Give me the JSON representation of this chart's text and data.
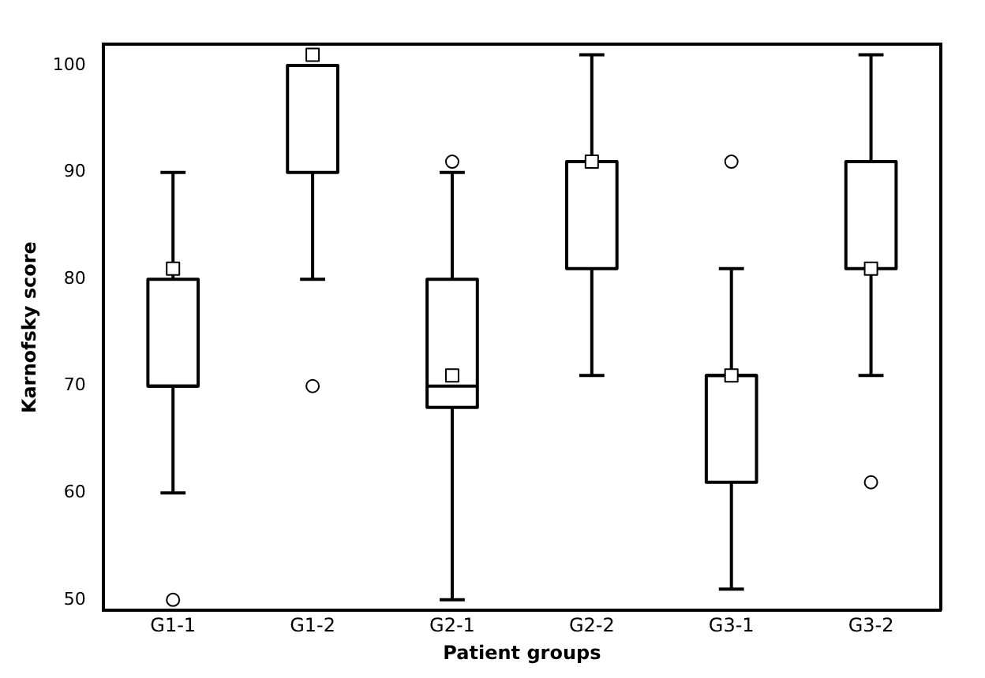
{
  "chart_data": {
    "type": "box",
    "xlabel": "Patient groups",
    "ylabel": "Karnofsky score",
    "categories": [
      "G1-1",
      "G1-2",
      "G2-1",
      "G2-2",
      "G3-1",
      "G3-2"
    ],
    "boxes": [
      {
        "low": 60,
        "q1": 70,
        "median": 70,
        "q3": 80,
        "high": 90,
        "mean": 81,
        "outliers": [
          50
        ]
      },
      {
        "low": 80,
        "q1": 90,
        "median": 100,
        "q3": 100,
        "high": 100,
        "mean": 101,
        "outliers": [
          70
        ]
      },
      {
        "low": 50,
        "q1": 68,
        "median": 70,
        "q3": 80,
        "high": 90,
        "mean": 71,
        "outliers": [
          91
        ]
      },
      {
        "low": 71,
        "q1": 81,
        "median": 91,
        "q3": 91,
        "high": 101,
        "mean": 91
      },
      {
        "low": 51,
        "q1": 61,
        "median": 71,
        "q3": 71,
        "high": 81,
        "mean": 71,
        "outliers": [
          91
        ]
      },
      {
        "low": 71,
        "q1": 81,
        "median": 91,
        "q3": 91,
        "high": 101,
        "mean": 81,
        "outliers": [
          61
        ]
      }
    ],
    "color": "#000000",
    "ylim": [
      49,
      102
    ],
    "yticks": [
      50,
      60,
      70,
      80,
      90,
      100
    ],
    "grid": false,
    "legend": false,
    "marker": "circle"
  }
}
